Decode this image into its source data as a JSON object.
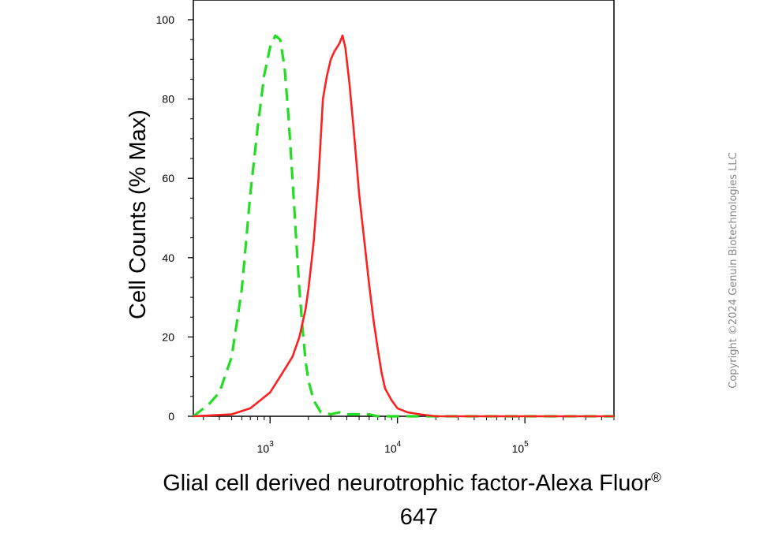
{
  "chart_data": {
    "type": "line",
    "xscale": "log",
    "xlim": [
      250,
      500000
    ],
    "ylim": [
      0,
      100
    ],
    "grid": false,
    "title": "",
    "ylabel": "Cell Counts (% Max)",
    "xlabel": "Glial cell derived neurotrophic factor-Alexa Fluor® 647",
    "xlabel_lines": [
      "Glial cell derived neurotrophic factor-Alexa Fluor",
      "647"
    ],
    "xlabel_superscript": "®",
    "yticks": [
      {
        "value": 0,
        "label": "0"
      },
      {
        "value": 20,
        "label": "20"
      },
      {
        "value": 40,
        "label": "40"
      },
      {
        "value": 60,
        "label": "60"
      },
      {
        "value": 80,
        "label": "80"
      },
      {
        "value": 100,
        "label": "100"
      }
    ],
    "xticks": [
      {
        "value": 1000,
        "base": "10",
        "exp": "3"
      },
      {
        "value": 10000,
        "base": "10",
        "exp": "4"
      },
      {
        "value": 100000,
        "base": "10",
        "exp": "5"
      }
    ],
    "series": [
      {
        "style": "dashed",
        "color": "#22dd22",
        "x": [
          250,
          330,
          400,
          500,
          600,
          700,
          800,
          900,
          1000,
          1100,
          1200,
          1300,
          1400,
          1500,
          1600,
          1700,
          1800,
          1900,
          2000,
          2200,
          2500,
          3000,
          3500,
          4000,
          5000,
          6000,
          7000,
          500000
        ],
        "y": [
          0,
          3,
          6,
          15,
          32,
          56,
          73,
          86,
          93,
          96,
          95,
          88,
          75,
          60,
          45,
          32,
          22,
          14,
          9,
          4,
          1,
          0.5,
          1,
          0.5,
          0.5,
          0.5,
          0,
          0
        ]
      },
      {
        "style": "solid",
        "color": "#ff2020",
        "x": [
          250,
          500,
          700,
          1000,
          1200,
          1500,
          1700,
          1900,
          2000,
          2100,
          2200,
          2400,
          2600,
          2800,
          3000,
          3200,
          3500,
          3700,
          3900,
          4200,
          4600,
          5000,
          5500,
          6000,
          6500,
          7000,
          7500,
          8000,
          9000,
          10000,
          12000,
          15000,
          20000,
          50000,
          100000,
          500000
        ],
        "y": [
          0,
          0.5,
          2,
          6,
          10,
          15,
          20,
          27,
          32,
          38,
          44,
          60,
          80,
          86,
          90,
          92,
          94,
          96,
          93,
          84,
          70,
          56,
          44,
          33,
          24,
          17,
          11,
          7,
          4,
          2,
          1,
          0.5,
          0,
          0,
          0,
          0
        ]
      }
    ]
  },
  "watermark": "Copyright ©2024 Genuin Biotechnologies LLC"
}
